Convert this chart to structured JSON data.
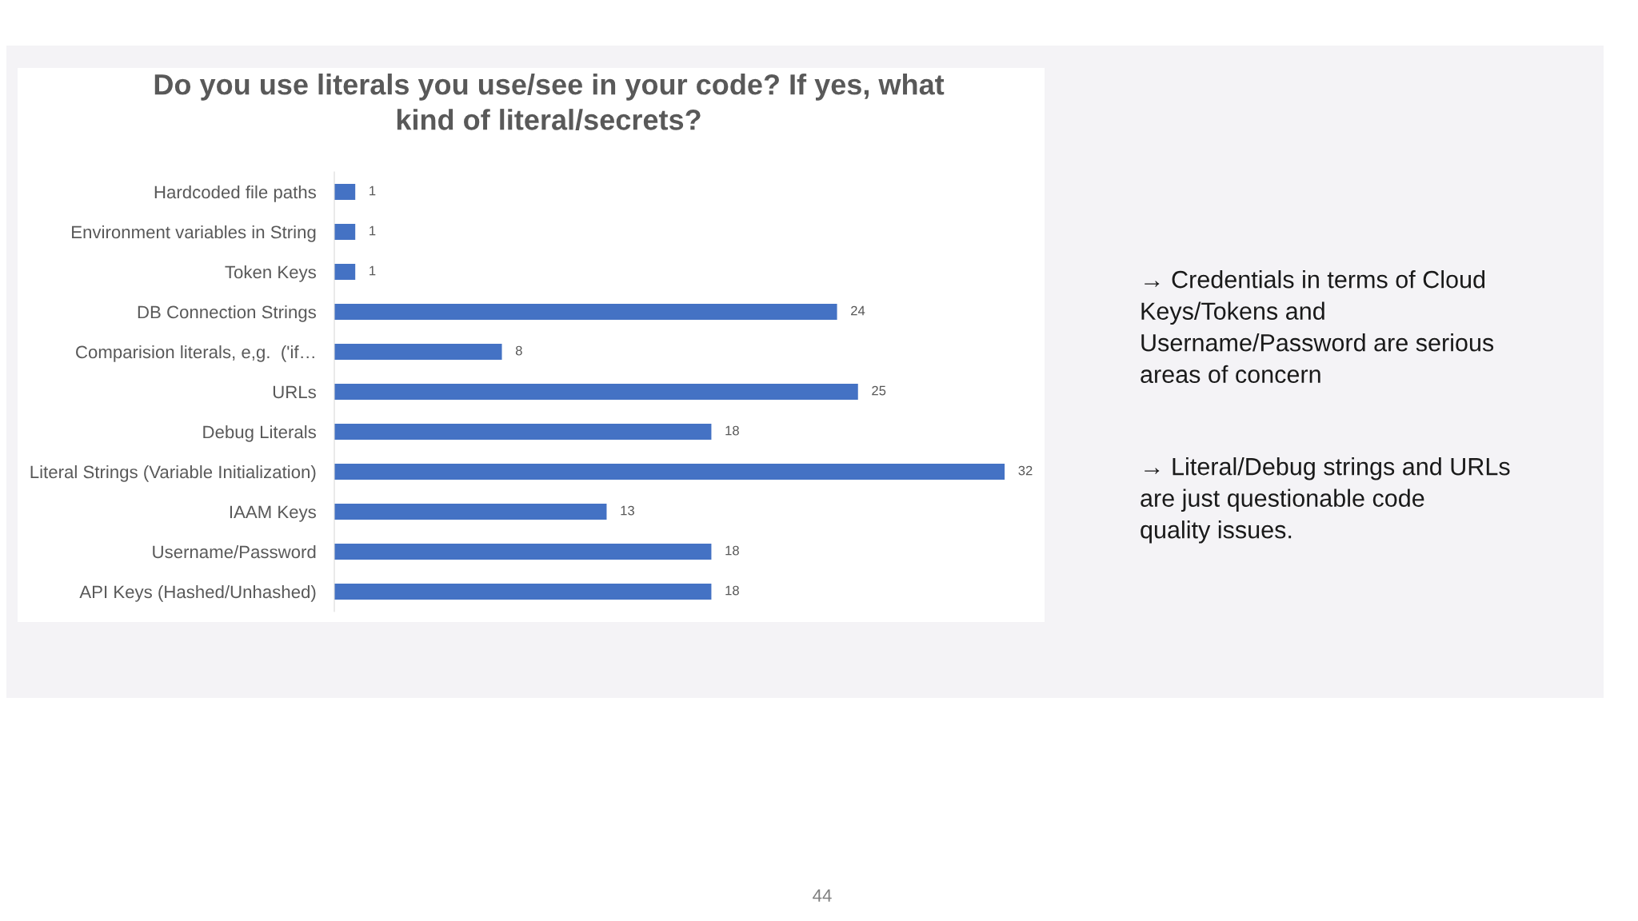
{
  "chart_data": {
    "type": "bar",
    "orientation": "horizontal",
    "title": "Do you use literals you use/see in your code? If yes, what\nkind of literal/secrets?",
    "categories": [
      "Hardcoded file paths",
      "Environment variables in String",
      "Token Keys",
      "DB Connection Strings",
      "Comparision literals, e,g.  ('if…",
      "URLs",
      "Debug Literals",
      "Literal Strings (Variable Initialization)",
      "IAAM Keys",
      "Username/Password",
      "API Keys (Hashed/Unhashed)"
    ],
    "values": [
      1,
      1,
      1,
      24,
      8,
      25,
      18,
      32,
      13,
      18,
      18
    ],
    "color": "#4472c4",
    "data_labels": true,
    "annotations": [
      "→ Credentials in terms of Cloud\nKeys/Tokens and\nUsername/Password are serious\nareas of concern",
      "→ Literal/Debug strings and URLs\nare just questionable code\nquality issues.",
      "44"
    ]
  }
}
